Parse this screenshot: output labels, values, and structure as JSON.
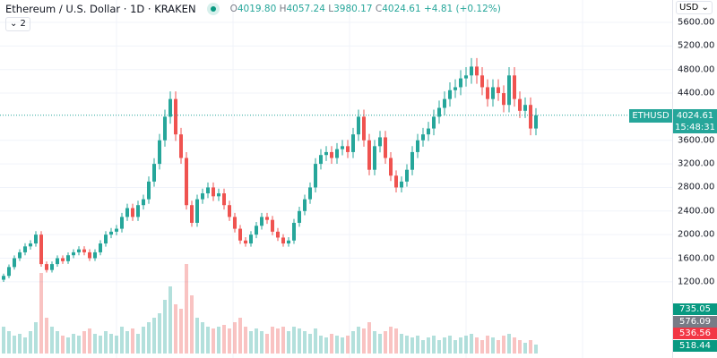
{
  "header": {
    "symbol": "Ethereum / U.S. Dollar · 1D · KRAKEN",
    "o_label": "O",
    "o": "4019.80",
    "h_label": "H",
    "h": "4057.24",
    "l_label": "L",
    "l": "3980.17",
    "c_label": "C",
    "c": "4024.61",
    "change": "+4.81 (+0.12%)",
    "indicators_toggle": "⌄ 2"
  },
  "currency": "USD",
  "colors": {
    "up": "#26a69a",
    "down": "#ef5350",
    "grid": "#f0f3fa"
  },
  "price_line": {
    "symbol": "ETHUSD",
    "price": "4024.61",
    "countdown": "15:48:31"
  },
  "volume_labels": [
    {
      "value": "735.05",
      "color": "#089981"
    },
    {
      "value": "576.09",
      "color": "#787b86"
    },
    {
      "value": "536.56",
      "color": "#f23645"
    },
    {
      "value": "518.44",
      "color": "#089981"
    }
  ],
  "chart_data": {
    "type": "candlestick",
    "y_ticks": [
      "5600.00",
      "5200.00",
      "4800.00",
      "4400.00",
      "3600.00",
      "3200.00",
      "2800.00",
      "2400.00",
      "2000.00",
      "1600.00",
      "1200.00"
    ],
    "ylim": [
      800,
      5650
    ],
    "grid": true,
    "closes": [
      1300,
      1450,
      1600,
      1700,
      1800,
      1850,
      2000,
      1500,
      1400,
      1500,
      1600,
      1550,
      1650,
      1700,
      1750,
      1700,
      1600,
      1700,
      1850,
      2000,
      2050,
      2100,
      2300,
      2450,
      2300,
      2500,
      2600,
      2900,
      3200,
      3600,
      4000,
      4300,
      3700,
      3300,
      2500,
      2200,
      2600,
      2700,
      2800,
      2650,
      2700,
      2500,
      2300,
      2100,
      1900,
      1850,
      2000,
      2150,
      2300,
      2250,
      2050,
      1950,
      1850,
      1900,
      2200,
      2400,
      2600,
      2800,
      3200,
      3350,
      3400,
      3300,
      3450,
      3500,
      3400,
      3700,
      4000,
      3600,
      3100,
      3500,
      3650,
      3300,
      3000,
      2800,
      2900,
      3100,
      3400,
      3600,
      3700,
      3800,
      4000,
      4150,
      4300,
      4450,
      4500,
      4650,
      4700,
      4850,
      4700,
      4500,
      4300,
      4500,
      4400,
      4200,
      4700,
      4300,
      4100,
      4200,
      3800,
      4024.61
    ],
    "volumes": [
      30,
      25,
      20,
      22,
      18,
      25,
      35,
      90,
      40,
      30,
      25,
      20,
      18,
      22,
      20,
      25,
      28,
      22,
      20,
      25,
      22,
      20,
      30,
      25,
      28,
      22,
      30,
      35,
      40,
      45,
      60,
      75,
      55,
      50,
      100,
      65,
      40,
      35,
      30,
      28,
      30,
      32,
      28,
      35,
      40,
      30,
      25,
      28,
      25,
      22,
      30,
      28,
      30,
      25,
      30,
      28,
      25,
      22,
      28,
      20,
      18,
      22,
      20,
      18,
      20,
      25,
      30,
      28,
      35,
      25,
      22,
      25,
      30,
      28,
      22,
      20,
      18,
      20,
      15,
      18,
      20,
      15,
      18,
      20,
      15,
      18,
      20,
      22,
      18,
      15,
      20,
      18,
      15,
      20,
      22,
      18,
      15,
      12,
      15,
      10
    ]
  }
}
